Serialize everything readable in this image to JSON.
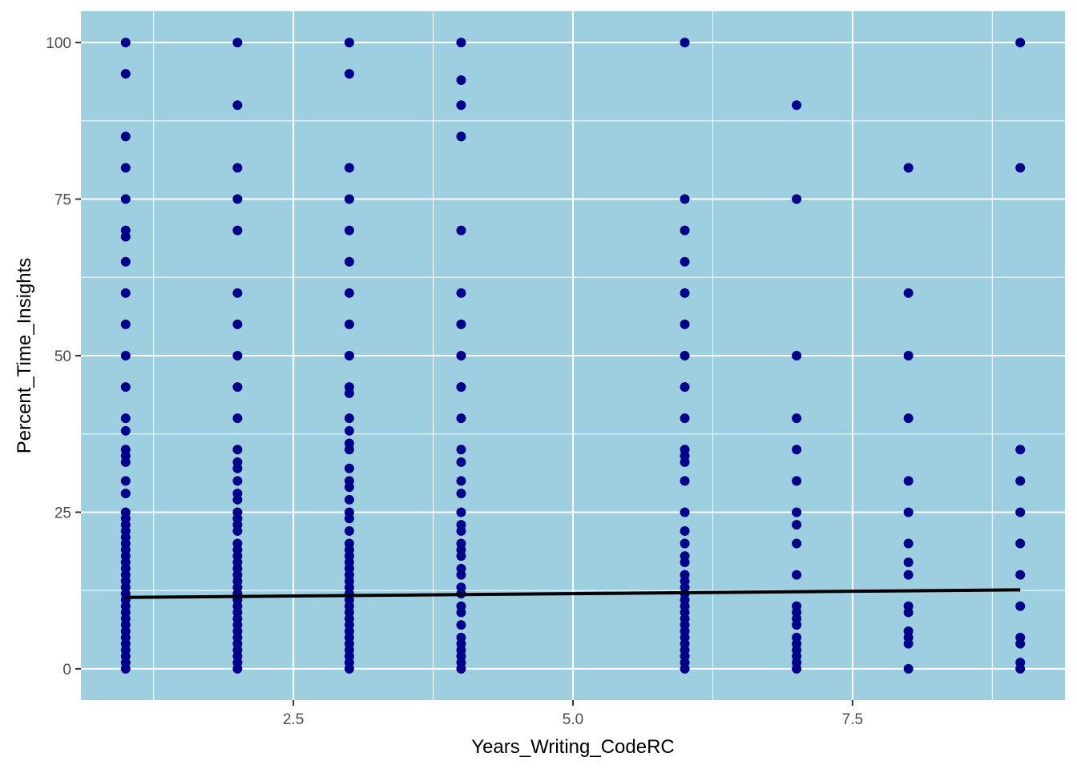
{
  "chart_data": {
    "type": "scatter",
    "title": "",
    "xlabel": "Years_Writing_CodeRC",
    "ylabel": "Percent_Time_Insights",
    "xlim": [
      0.6,
      9.4
    ],
    "ylim": [
      -5,
      105
    ],
    "x_ticks": [
      2.5,
      5.0,
      7.5
    ],
    "x_tick_labels": [
      "2.5",
      "5.0",
      "7.5"
    ],
    "y_ticks": [
      0,
      25,
      50,
      75,
      100
    ],
    "y_tick_labels": [
      "0",
      "25",
      "50",
      "75",
      "100"
    ],
    "grid": true,
    "legend": "none",
    "colors": {
      "panel_background": "#9ecfe0",
      "grid": "#ffffff",
      "points": "#00008b",
      "trend_line": "#000000"
    },
    "points": [
      {
        "x": 1,
        "y": [
          0,
          1,
          2,
          3,
          4,
          5,
          6,
          7,
          8,
          9,
          10,
          11,
          12,
          13,
          14,
          15,
          16,
          17,
          18,
          19,
          20,
          21,
          22,
          23,
          24,
          25,
          28,
          30,
          33,
          34,
          35,
          38,
          40,
          45,
          50,
          55,
          60,
          65,
          69,
          70,
          75,
          80,
          85,
          95,
          100
        ]
      },
      {
        "x": 2,
        "y": [
          0,
          1,
          2,
          3,
          4,
          5,
          6,
          7,
          8,
          9,
          10,
          11,
          12,
          13,
          14,
          15,
          16,
          17,
          18,
          19,
          20,
          22,
          23,
          24,
          25,
          27,
          28,
          30,
          32,
          33,
          35,
          40,
          45,
          50,
          55,
          60,
          70,
          75,
          80,
          90,
          100
        ]
      },
      {
        "x": 3,
        "y": [
          0,
          1,
          2,
          3,
          4,
          5,
          6,
          7,
          8,
          9,
          10,
          11,
          12,
          13,
          14,
          15,
          16,
          17,
          18,
          19,
          20,
          22,
          24,
          25,
          27,
          29,
          30,
          32,
          35,
          36,
          38,
          40,
          44,
          45,
          50,
          55,
          60,
          65,
          70,
          75,
          80,
          95,
          100
        ]
      },
      {
        "x": 4,
        "y": [
          0,
          1,
          2,
          3,
          4,
          5,
          7,
          9,
          10,
          12,
          13,
          15,
          16,
          18,
          19,
          20,
          22,
          23,
          25,
          28,
          30,
          33,
          35,
          40,
          45,
          50,
          55,
          60,
          70,
          85,
          90,
          94,
          100
        ]
      },
      {
        "x": 6,
        "y": [
          0,
          1,
          2,
          3,
          4,
          5,
          6,
          7,
          8,
          9,
          10,
          11,
          12,
          13,
          14,
          15,
          17,
          18,
          20,
          22,
          25,
          30,
          33,
          34,
          35,
          40,
          45,
          50,
          55,
          60,
          65,
          70,
          75,
          100
        ]
      },
      {
        "x": 7,
        "y": [
          0,
          1,
          2,
          3,
          4,
          5,
          7,
          8,
          9,
          10,
          15,
          20,
          23,
          25,
          30,
          35,
          40,
          50,
          75,
          90
        ]
      },
      {
        "x": 8,
        "y": [
          0,
          4,
          5,
          6,
          9,
          10,
          15,
          17,
          20,
          25,
          30,
          40,
          50,
          60,
          80
        ]
      },
      {
        "x": 9,
        "y": [
          0,
          1,
          4,
          5,
          10,
          15,
          20,
          25,
          30,
          35,
          80,
          100
        ]
      }
    ],
    "trend_line": {
      "x": [
        1,
        9
      ],
      "y": [
        11.4,
        12.6
      ]
    }
  }
}
